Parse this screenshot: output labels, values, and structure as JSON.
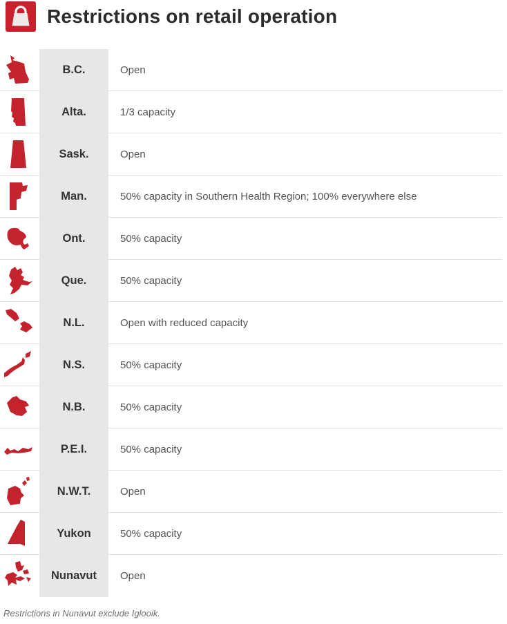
{
  "header": {
    "icon": "shopping-bag-icon"
  },
  "chart_data": {
    "type": "table",
    "title": "Restrictions on retail operation",
    "rows": [
      {
        "icon": "bc-map-icon",
        "province": "B.C.",
        "restriction": "Open"
      },
      {
        "icon": "alta-map-icon",
        "province": "Alta.",
        "restriction": "1/3 capacity"
      },
      {
        "icon": "sask-map-icon",
        "province": "Sask.",
        "restriction": "Open"
      },
      {
        "icon": "man-map-icon",
        "province": "Man.",
        "restriction": "50% capacity in Southern Health Region; 100% everywhere else"
      },
      {
        "icon": "ont-map-icon",
        "province": "Ont.",
        "restriction": "50% capacity"
      },
      {
        "icon": "que-map-icon",
        "province": "Que.",
        "restriction": "50% capacity"
      },
      {
        "icon": "nl-map-icon",
        "province": "N.L.",
        "restriction": "Open with reduced capacity"
      },
      {
        "icon": "ns-map-icon",
        "province": "N.S.",
        "restriction": "50% capacity"
      },
      {
        "icon": "nb-map-icon",
        "province": "N.B.",
        "restriction": "50% capacity"
      },
      {
        "icon": "pei-map-icon",
        "province": "P.E.I.",
        "restriction": "50% capacity"
      },
      {
        "icon": "nwt-map-icon",
        "province": "N.W.T.",
        "restriction": "Open"
      },
      {
        "icon": "yukon-map-icon",
        "province": "Yukon",
        "restriction": "50% capacity"
      },
      {
        "icon": "nunavut-map-icon",
        "province": "Nunavut",
        "restriction": "Open"
      }
    ],
    "footnote": "Restrictions in Nunavut exclude Iglooik."
  },
  "colors": {
    "map_red": "#c2232d",
    "header_badge_bg": "#c8202d",
    "label_bg": "#e8e7e7",
    "divider": "#e0e0e0"
  }
}
